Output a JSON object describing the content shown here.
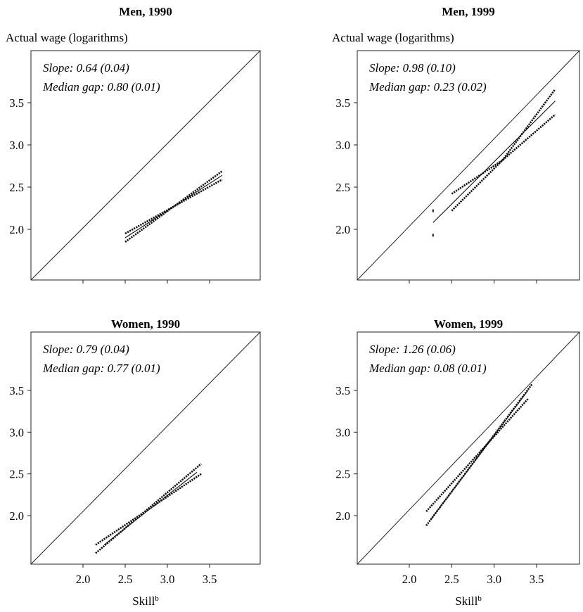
{
  "chart_data": [
    {
      "type": "line",
      "title": "Men, 1990",
      "ylabel": "Actual wage (logarithms)",
      "xlabel": "",
      "xlim": [
        1.4,
        4.0
      ],
      "ylim": [
        1.4,
        4.0
      ],
      "yticks": [
        "2.0",
        "2.5",
        "3.0",
        "3.5"
      ],
      "xticks": [],
      "annotations": [
        "Slope: 0.64 (0.04)",
        "Median gap: 0.80 (0.01)"
      ],
      "diagonal": true,
      "series": [
        {
          "style": "solid",
          "x": [
            2.5,
            3.65
          ],
          "y": [
            1.9,
            2.64
          ]
        },
        {
          "style": "dotted",
          "x": [
            2.5,
            3.65
          ],
          "y": [
            1.95,
            2.59
          ]
        },
        {
          "style": "dotted",
          "x": [
            2.5,
            3.65
          ],
          "y": [
            1.85,
            2.69
          ]
        }
      ]
    },
    {
      "type": "line",
      "title": "Men, 1999",
      "ylabel": "Actual wage (logarithms)",
      "xlabel": "",
      "xlim": [
        1.4,
        4.0
      ],
      "ylim": [
        1.4,
        4.0
      ],
      "yticks": [
        "2.0",
        "2.5",
        "3.0",
        "3.5"
      ],
      "xticks": [],
      "annotations": [
        "Slope: 0.98 (0.10)",
        "Median gap: 0.23 (0.02)"
      ],
      "diagonal": true,
      "series": [
        {
          "style": "solid",
          "x": [
            2.28,
            3.72
          ],
          "y": [
            2.08,
            3.52
          ]
        },
        {
          "style": "dotted",
          "x": [
            2.5,
            3.1,
            3.72
          ],
          "y": [
            2.42,
            2.82,
            3.36
          ]
        },
        {
          "style": "dotted",
          "x": [
            2.5,
            3.1,
            3.72
          ],
          "y": [
            2.22,
            2.82,
            3.66
          ]
        }
      ],
      "points": [
        {
          "x": 2.28,
          "y": 2.22
        },
        {
          "x": 2.28,
          "y": 1.93
        }
      ]
    },
    {
      "type": "line",
      "title": "Women, 1990",
      "ylabel": "",
      "xlabel": "Skill",
      "xlabel_sup": "b",
      "xlim": [
        1.4,
        4.0
      ],
      "ylim": [
        1.4,
        4.0
      ],
      "yticks": [
        "2.0",
        "2.5",
        "3.0",
        "3.5"
      ],
      "xticks": [
        "2.0",
        "2.5",
        "3.0",
        "3.5"
      ],
      "annotations": [
        "Slope: 0.79 (0.04)",
        "Median gap: 0.77 (0.01)"
      ],
      "diagonal": true,
      "series": [
        {
          "style": "solid",
          "x": [
            2.25,
            3.35
          ],
          "y": [
            1.65,
            2.52
          ]
        },
        {
          "style": "dotted",
          "x": [
            2.15,
            3.4
          ],
          "y": [
            1.65,
            2.5
          ]
        },
        {
          "style": "dotted",
          "x": [
            2.15,
            3.4
          ],
          "y": [
            1.55,
            2.62
          ]
        }
      ]
    },
    {
      "type": "line",
      "title": "Women, 1999",
      "ylabel": "",
      "xlabel": "Skill",
      "xlabel_sup": "b",
      "xlim": [
        1.4,
        4.0
      ],
      "ylim": [
        1.4,
        4.0
      ],
      "yticks": [
        "2.0",
        "2.5",
        "3.0",
        "3.5"
      ],
      "xticks": [
        "2.0",
        "2.5",
        "3.0",
        "3.5"
      ],
      "annotations": [
        "Slope: 1.26 (0.06)",
        "Median gap: 0.08 (0.01)"
      ],
      "diagonal": true,
      "series": [
        {
          "style": "solid",
          "x": [
            2.25,
            3.4
          ],
          "y": [
            1.95,
            3.5
          ]
        },
        {
          "style": "dotted",
          "x": [
            2.2,
            3.4
          ],
          "y": [
            2.05,
            3.4
          ]
        },
        {
          "style": "dotted",
          "x": [
            2.2,
            3.45
          ],
          "y": [
            1.88,
            3.58
          ]
        }
      ]
    }
  ]
}
